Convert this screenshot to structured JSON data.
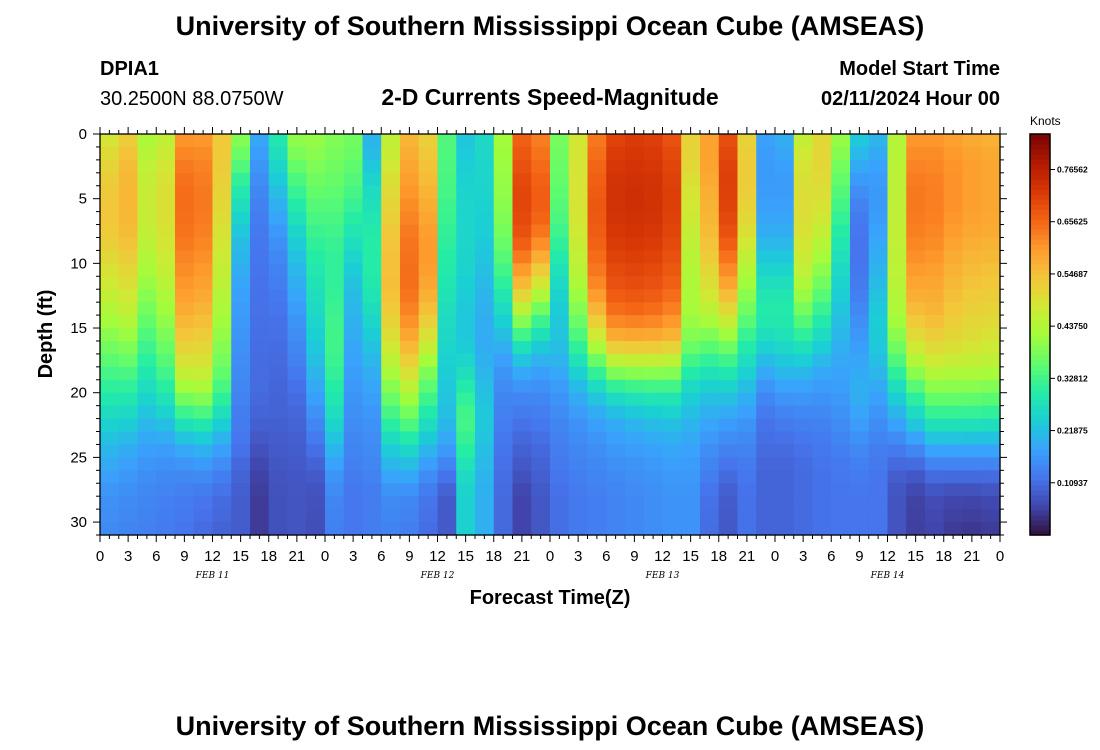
{
  "chart_data": {
    "type": "heatmap",
    "title": "University of Southern Mississippi Ocean Cube (AMSEAS)",
    "footer_title": "University of Southern Mississippi Ocean Cube (AMSEAS)",
    "station_id": "DPIA1",
    "station_coords": "30.2500N  88.0750W",
    "subtitle": "2-D Currents Speed-Magnitude",
    "model_start_label": "Model Start Time",
    "model_start_value": "02/11/2024 Hour 00",
    "xlabel": "Forecast Time(Z)",
    "ylabel": "Depth (ft)",
    "x_range_hours": [
      0,
      96
    ],
    "y_range_ft": [
      0,
      31
    ],
    "x_tick_labels": [
      "0",
      "3",
      "6",
      "9",
      "12",
      "15",
      "18",
      "21",
      "0",
      "3",
      "6",
      "9",
      "12",
      "15",
      "18",
      "21",
      "0",
      "3",
      "6",
      "9",
      "12",
      "15",
      "18",
      "21",
      "0",
      "3",
      "6",
      "9",
      "12",
      "15",
      "18",
      "21",
      "0"
    ],
    "y_ticks": [
      0,
      5,
      10,
      15,
      20,
      25,
      30
    ],
    "day_labels": [
      {
        "text": "FEB 11",
        "hour": 12
      },
      {
        "text": "FEB 12",
        "hour": 36
      },
      {
        "text": "FEB 13",
        "hour": 60
      },
      {
        "text": "FEB 14",
        "hour": 84
      }
    ],
    "colorbar": {
      "unit": "Knots",
      "min": 0.0,
      "max": 0.84,
      "ticks": [
        0.10937,
        0.21875,
        0.32812,
        0.4375,
        0.54687,
        0.65625,
        0.76562
      ],
      "tick_labels": [
        "0.10937",
        "0.21875",
        "0.32812",
        "0.43750",
        "0.54687",
        "0.65625",
        "0.76562"
      ],
      "colors": [
        "#30123b",
        "#4145ab",
        "#4675ed",
        "#39a2fc",
        "#1bcfd4",
        "#24eca6",
        "#61fc6c",
        "#a4fc3b",
        "#d1e834",
        "#f3c63a",
        "#fe9b2d",
        "#f36315",
        "#d93806",
        "#b11901",
        "#7a0402"
      ]
    },
    "speed_columns": [
      {
        "hour": 0.0,
        "speed_knots": [
          0.46,
          0.49,
          0.52,
          0.53,
          0.52,
          0.49,
          0.46,
          0.42,
          0.38,
          0.34,
          0.3,
          0.26,
          0.22,
          0.19,
          0.16,
          0.15
        ]
      },
      {
        "hour": 3.0,
        "speed_knots": [
          0.52,
          0.55,
          0.56,
          0.56,
          0.55,
          0.52,
          0.49,
          0.45,
          0.4,
          0.35,
          0.3,
          0.25,
          0.2,
          0.17,
          0.15,
          0.14
        ]
      },
      {
        "hour": 6.0,
        "speed_knots": [
          0.38,
          0.4,
          0.42,
          0.42,
          0.41,
          0.39,
          0.36,
          0.33,
          0.3,
          0.27,
          0.24,
          0.2,
          0.17,
          0.15,
          0.14,
          0.13
        ]
      },
      {
        "hour": 9.0,
        "speed_knots": [
          0.6,
          0.63,
          0.65,
          0.65,
          0.64,
          0.62,
          0.6,
          0.57,
          0.53,
          0.48,
          0.4,
          0.3,
          0.2,
          0.15,
          0.13,
          0.12
        ]
      },
      {
        "hour": 12.0,
        "speed_knots": [
          0.6,
          0.62,
          0.63,
          0.63,
          0.62,
          0.6,
          0.58,
          0.55,
          0.52,
          0.48,
          0.42,
          0.32,
          0.22,
          0.16,
          0.12,
          0.1
        ]
      },
      {
        "hour": 15.0,
        "speed_knots": [
          0.4,
          0.36,
          0.3,
          0.26,
          0.22,
          0.2,
          0.18,
          0.17,
          0.16,
          0.15,
          0.14,
          0.13,
          0.12,
          0.1,
          0.09,
          0.09
        ]
      },
      {
        "hour": 17.5,
        "speed_knots": [
          0.14,
          0.12,
          0.11,
          0.1,
          0.1,
          0.1,
          0.1,
          0.1,
          0.1,
          0.1,
          0.1,
          0.09,
          0.07,
          0.05,
          0.04,
          0.04
        ]
      },
      {
        "hour": 20.0,
        "speed_knots": [
          0.4,
          0.36,
          0.3,
          0.25,
          0.2,
          0.17,
          0.15,
          0.13,
          0.12,
          0.11,
          0.1,
          0.1,
          0.1,
          0.1,
          0.1,
          0.1
        ]
      },
      {
        "hour": 22.5,
        "speed_knots": [
          0.42,
          0.4,
          0.37,
          0.34,
          0.31,
          0.28,
          0.25,
          0.22,
          0.19,
          0.16,
          0.13,
          0.1,
          0.08,
          0.06,
          0.05,
          0.05
        ]
      },
      {
        "hour": 24.5,
        "speed_knots": [
          0.38,
          0.37,
          0.36,
          0.35,
          0.34,
          0.34,
          0.35,
          0.37,
          0.38,
          0.37,
          0.34,
          0.3,
          0.24,
          0.18,
          0.15,
          0.14
        ]
      },
      {
        "hour": 26.5,
        "speed_knots": [
          0.42,
          0.4,
          0.36,
          0.32,
          0.27,
          0.23,
          0.2,
          0.19,
          0.18,
          0.17,
          0.16,
          0.15,
          0.14,
          0.13,
          0.12,
          0.12
        ]
      },
      {
        "hour": 29.0,
        "speed_knots": [
          0.2,
          0.22,
          0.26,
          0.28,
          0.3,
          0.3,
          0.29,
          0.26,
          0.23,
          0.2,
          0.18,
          0.16,
          0.15,
          0.14,
          0.13,
          0.13
        ]
      },
      {
        "hour": 32.0,
        "speed_knots": [
          0.58,
          0.6,
          0.62,
          0.64,
          0.66,
          0.67,
          0.68,
          0.66,
          0.62,
          0.56,
          0.48,
          0.4,
          0.3,
          0.22,
          0.16,
          0.14
        ]
      },
      {
        "hour": 35.0,
        "speed_knots": [
          0.52,
          0.54,
          0.56,
          0.58,
          0.6,
          0.6,
          0.58,
          0.54,
          0.48,
          0.4,
          0.34,
          0.28,
          0.22,
          0.16,
          0.12,
          0.11
        ]
      },
      {
        "hour": 37.5,
        "speed_knots": [
          0.3,
          0.29,
          0.28,
          0.26,
          0.24,
          0.22,
          0.21,
          0.2,
          0.2,
          0.2,
          0.2,
          0.2,
          0.17,
          0.12,
          0.08,
          0.08
        ]
      },
      {
        "hour": 39.5,
        "speed_knots": [
          0.2,
          0.22,
          0.24,
          0.25,
          0.26,
          0.26,
          0.25,
          0.24,
          0.24,
          0.28,
          0.34,
          0.38,
          0.36,
          0.32,
          0.3,
          0.3
        ]
      },
      {
        "hour": 42.0,
        "speed_knots": [
          0.3,
          0.28,
          0.26,
          0.24,
          0.22,
          0.2,
          0.18,
          0.17,
          0.16,
          0.15,
          0.14,
          0.14,
          0.13,
          0.13,
          0.13,
          0.13
        ]
      },
      {
        "hour": 45.0,
        "speed_knots": [
          0.66,
          0.68,
          0.7,
          0.7,
          0.68,
          0.62,
          0.54,
          0.42,
          0.3,
          0.2,
          0.15,
          0.12,
          0.1,
          0.08,
          0.06,
          0.06
        ]
      },
      {
        "hour": 47.5,
        "speed_knots": [
          0.62,
          0.64,
          0.66,
          0.66,
          0.62,
          0.54,
          0.44,
          0.33,
          0.24,
          0.18,
          0.15,
          0.13,
          0.11,
          0.1,
          0.09,
          0.09
        ]
      },
      {
        "hour": 49.5,
        "speed_knots": [
          0.3,
          0.28,
          0.26,
          0.24,
          0.22,
          0.2,
          0.19,
          0.2,
          0.22,
          0.2,
          0.17,
          0.15,
          0.14,
          0.13,
          0.12,
          0.12
        ]
      },
      {
        "hour": 52.0,
        "speed_knots": [
          0.6,
          0.62,
          0.64,
          0.65,
          0.64,
          0.62,
          0.58,
          0.5,
          0.4,
          0.3,
          0.22,
          0.17,
          0.15,
          0.14,
          0.13,
          0.13
        ]
      },
      {
        "hour": 55.0,
        "speed_knots": [
          0.7,
          0.72,
          0.73,
          0.73,
          0.72,
          0.7,
          0.68,
          0.64,
          0.56,
          0.42,
          0.28,
          0.2,
          0.17,
          0.15,
          0.14,
          0.14
        ]
      },
      {
        "hour": 58.0,
        "speed_knots": [
          0.72,
          0.73,
          0.74,
          0.74,
          0.73,
          0.71,
          0.69,
          0.65,
          0.57,
          0.43,
          0.3,
          0.22,
          0.18,
          0.16,
          0.15,
          0.15
        ]
      },
      {
        "hour": 61.0,
        "speed_knots": [
          0.68,
          0.7,
          0.71,
          0.71,
          0.7,
          0.68,
          0.66,
          0.62,
          0.55,
          0.42,
          0.3,
          0.23,
          0.19,
          0.17,
          0.16,
          0.16
        ]
      },
      {
        "hour": 64.0,
        "speed_knots": [
          0.44,
          0.42,
          0.38,
          0.36,
          0.34,
          0.32,
          0.32,
          0.32,
          0.3,
          0.26,
          0.22,
          0.2,
          0.18,
          0.17,
          0.16,
          0.16
        ]
      },
      {
        "hour": 66.0,
        "speed_knots": [
          0.74,
          0.76,
          0.77,
          0.77,
          0.76,
          0.72,
          0.66,
          0.56,
          0.44,
          0.33,
          0.24,
          0.18,
          0.14,
          0.1,
          0.07,
          0.06
        ]
      },
      {
        "hour": 68.5,
        "speed_knots": [
          0.6,
          0.62,
          0.62,
          0.6,
          0.56,
          0.5,
          0.44,
          0.38,
          0.32,
          0.27,
          0.22,
          0.18,
          0.15,
          0.13,
          0.12,
          0.12
        ]
      },
      {
        "hour": 71.0,
        "speed_knots": [
          0.18,
          0.17,
          0.17,
          0.18,
          0.2,
          0.24,
          0.28,
          0.3,
          0.26,
          0.2,
          0.15,
          0.12,
          0.11,
          0.1,
          0.1,
          0.1
        ]
      },
      {
        "hour": 73.0,
        "speed_knots": [
          0.2,
          0.18,
          0.17,
          0.18,
          0.2,
          0.24,
          0.28,
          0.3,
          0.27,
          0.22,
          0.17,
          0.13,
          0.11,
          0.1,
          0.1,
          0.1
        ]
      },
      {
        "hour": 75.5,
        "speed_knots": [
          0.52,
          0.56,
          0.58,
          0.58,
          0.56,
          0.52,
          0.46,
          0.38,
          0.3,
          0.22,
          0.17,
          0.14,
          0.12,
          0.11,
          0.11,
          0.11
        ]
      },
      {
        "hour": 78.0,
        "speed_knots": [
          0.5,
          0.48,
          0.45,
          0.42,
          0.38,
          0.34,
          0.3,
          0.26,
          0.22,
          0.18,
          0.16,
          0.14,
          0.13,
          0.12,
          0.12,
          0.12
        ]
      },
      {
        "hour": 81.0,
        "speed_knots": [
          0.24,
          0.2,
          0.16,
          0.13,
          0.12,
          0.12,
          0.13,
          0.15,
          0.17,
          0.19,
          0.2,
          0.18,
          0.15,
          0.13,
          0.12,
          0.12
        ]
      },
      {
        "hour": 83.5,
        "speed_knots": [
          0.2,
          0.18,
          0.17,
          0.18,
          0.2,
          0.22,
          0.24,
          0.26,
          0.25,
          0.22,
          0.18,
          0.15,
          0.13,
          0.12,
          0.12,
          0.12
        ]
      },
      {
        "hour": 86.0,
        "speed_knots": [
          0.6,
          0.62,
          0.64,
          0.64,
          0.63,
          0.61,
          0.58,
          0.54,
          0.48,
          0.4,
          0.3,
          0.22,
          0.14,
          0.08,
          0.05,
          0.05
        ]
      },
      {
        "hour": 89.0,
        "speed_knots": [
          0.6,
          0.62,
          0.63,
          0.63,
          0.62,
          0.6,
          0.58,
          0.56,
          0.52,
          0.46,
          0.38,
          0.3,
          0.2,
          0.12,
          0.07,
          0.06
        ]
      },
      {
        "hour": 92.0,
        "speed_knots": [
          0.58,
          0.6,
          0.6,
          0.6,
          0.58,
          0.56,
          0.54,
          0.52,
          0.5,
          0.45,
          0.38,
          0.3,
          0.2,
          0.12,
          0.06,
          0.04
        ]
      },
      {
        "hour": 96.0,
        "speed_knots": [
          0.56,
          0.58,
          0.58,
          0.58,
          0.57,
          0.55,
          0.53,
          0.51,
          0.48,
          0.44,
          0.37,
          0.29,
          0.2,
          0.12,
          0.07,
          0.05
        ]
      }
    ],
    "speed_depths_ft": [
      0,
      2,
      4,
      6,
      8,
      10,
      12,
      14,
      16,
      18,
      20,
      22,
      24,
      26,
      28,
      31
    ]
  }
}
